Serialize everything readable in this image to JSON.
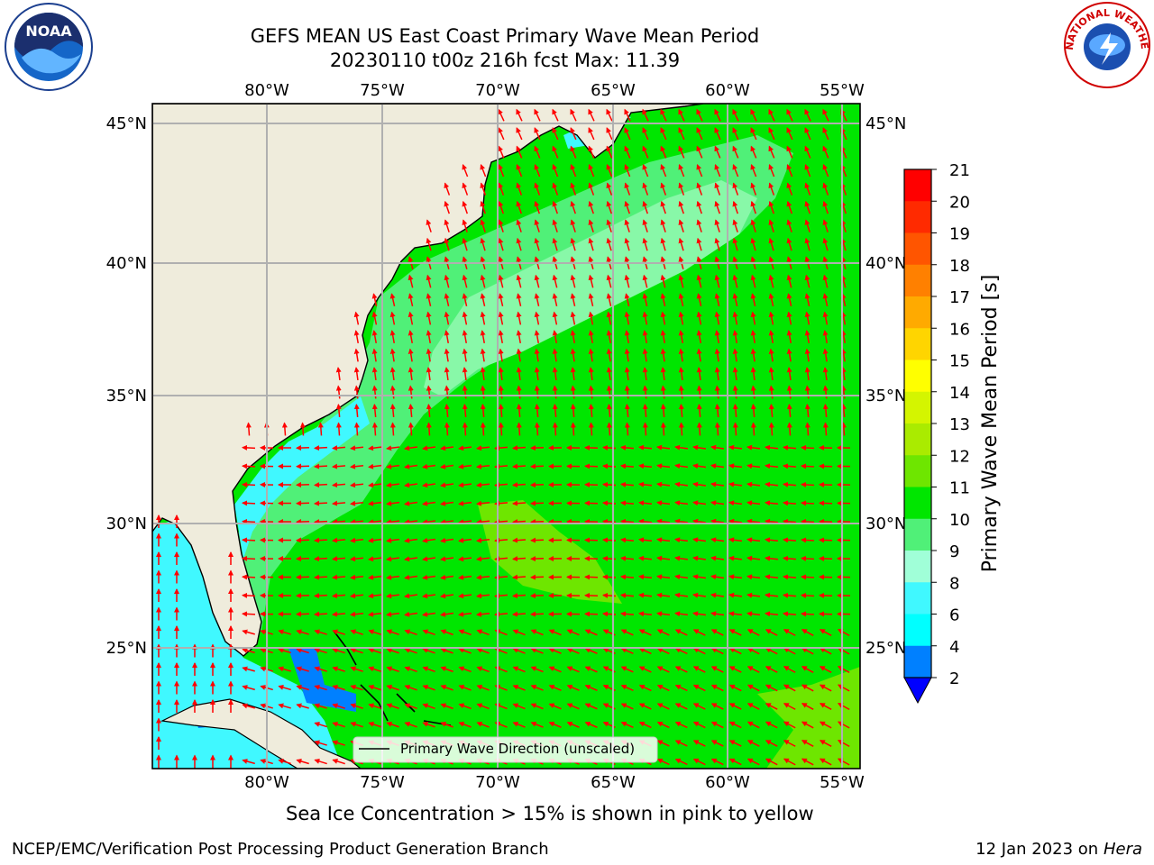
{
  "header": {
    "title_line1": "GEFS MEAN US East Coast Primary Wave Mean Period",
    "title_line2": "20230110 t00z 216h fcst   Max: 11.39"
  },
  "logos": {
    "noaa": {
      "icon": "noaa-logo-icon",
      "text": "NOAA"
    },
    "nws": {
      "icon": "nws-logo-icon",
      "text": "NATIONAL WEATHER SERVICE"
    }
  },
  "map": {
    "lon_ticks_top": [
      "80°W",
      "75°W",
      "70°W",
      "65°W",
      "60°W",
      "55°W"
    ],
    "lon_ticks_bottom": [
      "80°W",
      "75°W",
      "70°W",
      "65°W",
      "60°W",
      "55°W"
    ],
    "lat_ticks_left": [
      "45°N",
      "40°N",
      "35°N",
      "30°N",
      "25°N"
    ],
    "lat_ticks_right": [
      "45°N",
      "40°N",
      "35°N",
      "30°N",
      "25°N"
    ],
    "legend_label": "Primary Wave Direction (unscaled)",
    "colors": {
      "land": "#efecdc",
      "ocean_main": "#00e600",
      "ocean_light": "#50f078",
      "ocean_pale": "#a0ffb0",
      "shallow": "#40f8ff",
      "vectors": "#ff0000"
    }
  },
  "colorbar": {
    "label": "Primary Wave Mean Period [s]",
    "ticks": [
      "21",
      "20",
      "19",
      "18",
      "17",
      "16",
      "15",
      "14",
      "13",
      "12",
      "11",
      "10",
      "9",
      "8",
      "6",
      "4",
      "2"
    ],
    "colors": [
      "#ff0000",
      "#ff2a00",
      "#ff5500",
      "#ff8000",
      "#ffaa00",
      "#ffd500",
      "#ffff00",
      "#d4f500",
      "#aaeb00",
      "#6ee600",
      "#00e600",
      "#50f078",
      "#a0ffd8",
      "#40f8ff",
      "#00ffff",
      "#0080ff"
    ],
    "extend_color": "#0000ff"
  },
  "footer": {
    "sea_ice_note": "Sea Ice Concentration > 15% is shown in pink to yellow",
    "branch": "NCEP/EMC/Verification Post Processing Product Generation Branch",
    "date_prefix": "12 Jan 2023 on ",
    "machine": "Hera"
  }
}
